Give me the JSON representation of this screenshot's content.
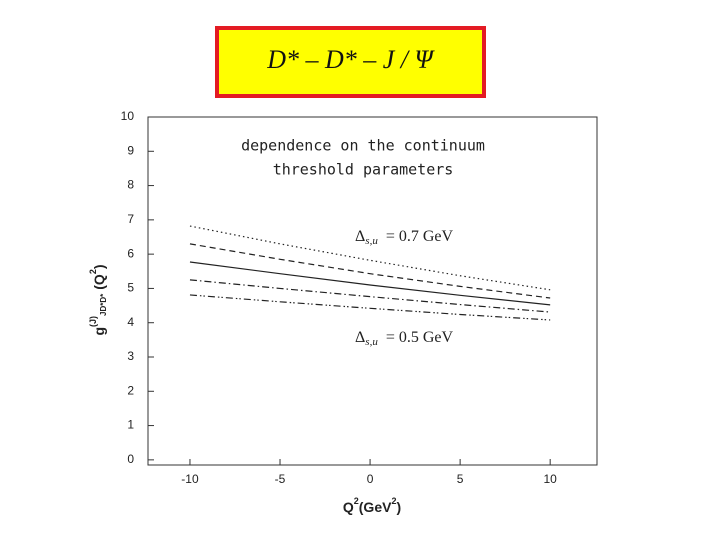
{
  "chart_data": {
    "type": "line",
    "title": "D* – D* – J / Ψ",
    "annotations": [
      "dependence on the continuum",
      "threshold  parameters"
    ],
    "labels": [
      {
        "symbol": "Δ",
        "subscript": "s,u",
        "text": "= 0.7 GeV"
      },
      {
        "symbol": "Δ",
        "subscript": "s,u",
        "text": "= 0.5 GeV"
      }
    ],
    "x_label": [
      "Q",
      "2",
      "(GeV",
      "2",
      ")"
    ],
    "y_label": [
      "g",
      "(J)",
      "JD*D*",
      "(Q",
      "2",
      ")"
    ],
    "x": [
      -10,
      -5,
      0,
      5,
      10
    ],
    "series": [
      {
        "color": "#222222",
        "dash": "dotted",
        "values": [
          6.82,
          6.3,
          5.82,
          5.37,
          4.96
        ]
      },
      {
        "color": "#222222",
        "dash": "dashed",
        "values": [
          6.3,
          5.85,
          5.43,
          5.06,
          4.72
        ]
      },
      {
        "color": "#222222",
        "dash": "solid",
        "values": [
          5.77,
          5.43,
          5.1,
          4.8,
          4.52
        ]
      },
      {
        "color": "#222222",
        "dash": "dash-dot",
        "values": [
          5.25,
          5.0,
          4.76,
          4.53,
          4.31
        ]
      },
      {
        "color": "#222222",
        "dash": "dash-dot-dot",
        "values": [
          4.81,
          4.61,
          4.42,
          4.24,
          4.08
        ]
      }
    ],
    "xlim": [
      -12.33,
      12.6
    ],
    "xticks": [
      -10,
      -5,
      0,
      5,
      10
    ],
    "ylim": [
      -0.15,
      10
    ],
    "yticks": [
      0,
      1,
      2,
      3,
      4,
      5,
      6,
      7,
      8,
      9,
      10
    ],
    "grid": false
  }
}
